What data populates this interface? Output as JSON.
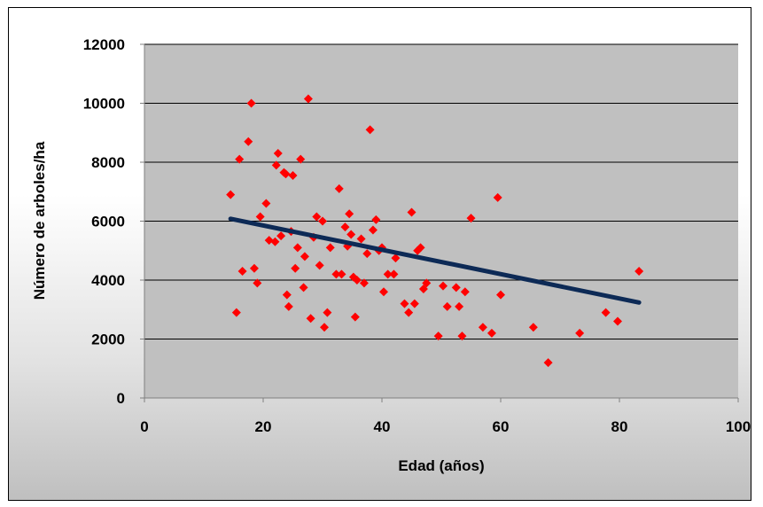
{
  "chart_data": {
    "type": "scatter",
    "title": "",
    "xlabel": "Edad (años)",
    "ylabel": "Número de arboles/ha",
    "xlim": [
      0,
      100
    ],
    "ylim": [
      0,
      12000
    ],
    "x_ticks": [
      "0",
      "20",
      "40",
      "60",
      "80",
      "100"
    ],
    "y_ticks": [
      "0",
      "2000",
      "4000",
      "6000",
      "8000",
      "10000",
      "12000"
    ],
    "grid": "horizontal",
    "legend": "none",
    "colors": {
      "plot_area": "#c0c0c0",
      "marker": "#ff0000",
      "trendline": "#0d2a56",
      "grid": "#000000"
    },
    "series": [
      {
        "marker": "diamond",
        "x": [
          14.5,
          15.5,
          16,
          16.5,
          17.5,
          18,
          18.5,
          19,
          19.5,
          20.5,
          21,
          22,
          22.2,
          22.5,
          23,
          23.5,
          23.8,
          24,
          24.3,
          24.7,
          25,
          25.4,
          25.8,
          26.3,
          26.8,
          27,
          27.6,
          28,
          28.5,
          29,
          29.5,
          30,
          30.3,
          30.8,
          31.3,
          32.3,
          32.8,
          33.2,
          33.8,
          34.2,
          34.5,
          34.8,
          35.2,
          35.5,
          35.8,
          36.5,
          37,
          37.5,
          38,
          38.5,
          39,
          39.5,
          40,
          40.3,
          41,
          42,
          42.3,
          43.8,
          44.5,
          45,
          45.5,
          46,
          46.5,
          47,
          47.5,
          49.5,
          50.3,
          51,
          52.5,
          53,
          53.5,
          54,
          55,
          57,
          58.5,
          59.5,
          60,
          65.5,
          68,
          73.3,
          77.7,
          79.7,
          83.3
        ],
        "y": [
          6900,
          2900,
          8100,
          4300,
          8700,
          10000,
          4400,
          3900,
          6150,
          6600,
          5350,
          5300,
          7900,
          8300,
          5500,
          7650,
          7600,
          3500,
          3100,
          5650,
          7550,
          4400,
          5100,
          8100,
          3750,
          4800,
          10150,
          2700,
          5450,
          6150,
          4500,
          6000,
          2400,
          2900,
          5100,
          4200,
          7100,
          4200,
          5800,
          5150,
          6250,
          5550,
          4100,
          2750,
          4000,
          5400,
          3900,
          4900,
          9100,
          5700,
          6050,
          5000,
          5100,
          3600,
          4200,
          4200,
          4750,
          3200,
          2900,
          6300,
          3200,
          5000,
          5100,
          3700,
          3900,
          2100,
          3800,
          3100,
          3750,
          3100,
          2100,
          3600,
          6100,
          2400,
          2200,
          6800,
          3500,
          2400,
          1200,
          2200,
          2900,
          2600,
          4300
        ]
      }
    ],
    "trendline": {
      "x": [
        14.5,
        83.3
      ],
      "y": [
        6080,
        3240
      ]
    }
  }
}
